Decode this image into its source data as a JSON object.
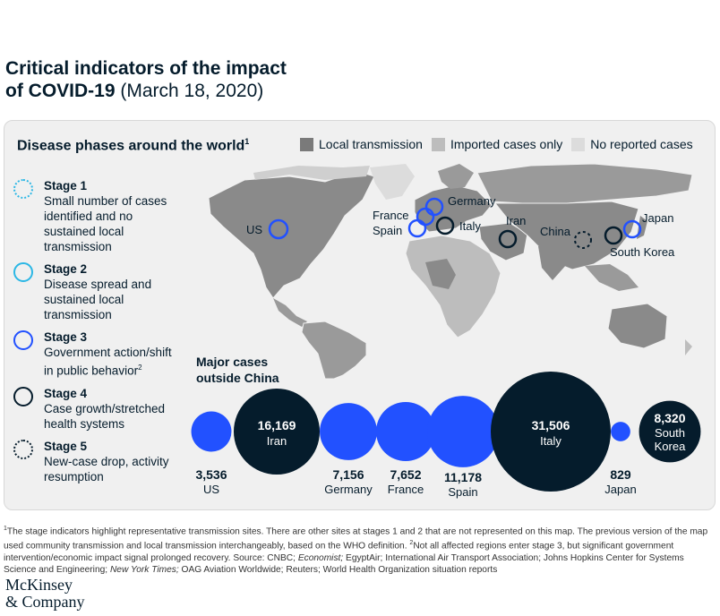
{
  "title": {
    "line1": "Critical indicators of the impact",
    "line2_bold": "of COVID-19",
    "line2_normal": " (March 18, 2020)"
  },
  "panel": {
    "heading": "Disease phases around the world",
    "heading_sup": "1",
    "legend": [
      {
        "label": "Local transmission",
        "color": "#7a7a7a"
      },
      {
        "label": "Imported cases only",
        "color": "#bdbdbd"
      },
      {
        "label": "No reported cases",
        "color": "#dcdcdc"
      }
    ]
  },
  "stages": [
    {
      "title": "Stage 1",
      "desc": "Small number of cases identified and no sustained local transmission",
      "color": "#2bb7e5",
      "style": "dotted"
    },
    {
      "title": "Stage 2",
      "desc": "Disease spread and sustained local transmission",
      "color": "#2bb7e5",
      "style": "solid"
    },
    {
      "title": "Stage 3",
      "desc": "Government action/shift in public behavior",
      "desc_sup": "2",
      "color": "#2251ff",
      "style": "solid"
    },
    {
      "title": "Stage 4",
      "desc": "Case growth/stretched health systems",
      "color": "#051c2c",
      "style": "solid"
    },
    {
      "title": "Stage 5",
      "desc": "New-case drop, activity resumption",
      "color": "#051c2c",
      "style": "dotted"
    }
  ],
  "map_labels": {
    "us": "US",
    "france": "France",
    "germany": "Germany",
    "spain": "Spain",
    "italy": "Italy",
    "iran": "Iran",
    "china": "China",
    "japan": "Japan",
    "south_korea": "South Korea"
  },
  "cases_title": "Major cases outside China",
  "colors": {
    "stage3": "#2251ff",
    "stage4": "#051c2c",
    "land_local": "#7a7a7a",
    "land_imported": "#bdbdbd",
    "land_none": "#dcdcdc"
  },
  "chart_data": {
    "type": "bubble",
    "title": "Major cases outside China",
    "points": [
      {
        "country": "US",
        "cases": 3536,
        "label": "3,536",
        "stage": 3
      },
      {
        "country": "Iran",
        "cases": 16169,
        "label": "16,169",
        "stage": 4
      },
      {
        "country": "Germany",
        "cases": 7156,
        "label": "7,156",
        "stage": 3
      },
      {
        "country": "France",
        "cases": 7652,
        "label": "7,652",
        "stage": 3
      },
      {
        "country": "Spain",
        "cases": 11178,
        "label": "11,178",
        "stage": 3
      },
      {
        "country": "Italy",
        "cases": 31506,
        "label": "31,506",
        "stage": 4
      },
      {
        "country": "Japan",
        "cases": 829,
        "label": "829",
        "stage": 3
      },
      {
        "country": "South Korea",
        "cases": 8320,
        "label": "8,320",
        "stage": 4
      }
    ]
  },
  "footnote": {
    "sup1": "1",
    "part1": "The stage indicators highlight representative transmission sites. There are other sites at stages 1 and 2 that are not represented on this map. The previous version of the map used community transmission and local transmission interchangeably, based on the WHO definition.",
    "sup2": "2",
    "part2": "Not all affected regions enter stage 3, but significant government intervention/economic impact signal prolonged recovery. Source: CNBC;",
    "economist": "Economist;",
    "part3": "EgyptAir; International Air Transport Association; Johns Hopkins Center for Systems Science and Engineering;",
    "nyt": "New York Times;",
    "part4": "OAG Aviation Worldwide; Reuters; World Health Organization situation reports"
  },
  "brand": {
    "line1": "McKinsey",
    "line2": "& Company"
  }
}
